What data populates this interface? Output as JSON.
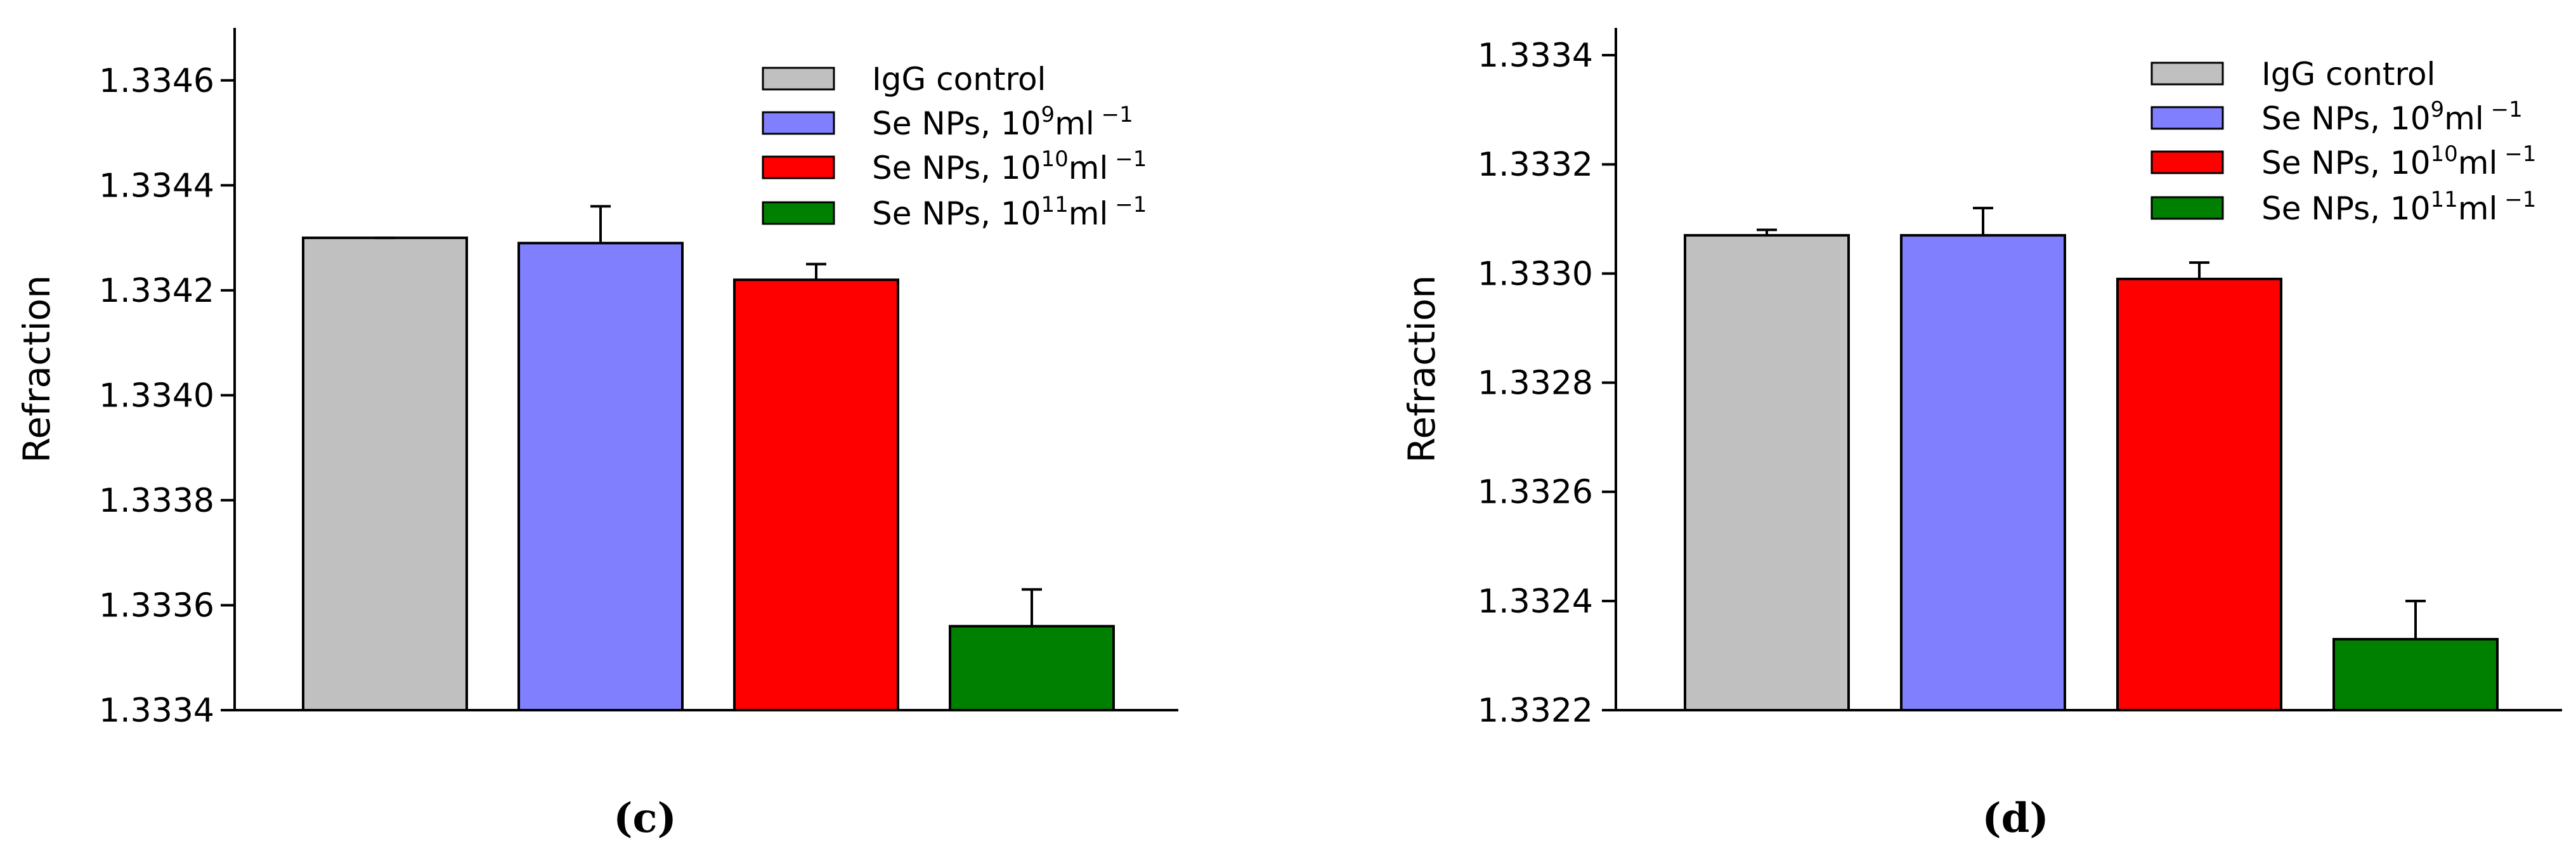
{
  "chart_data": [
    {
      "type": "bar",
      "panel_label": "(c)",
      "ylabel": "Refraction",
      "ylim": [
        1.3334,
        1.3347
      ],
      "yticks": [
        "1.3334",
        "1.3336",
        "1.3338",
        "1.3340",
        "1.3342",
        "1.3344",
        "1.3346"
      ],
      "legend_position": "top-right",
      "series": [
        {
          "name": "IgG control",
          "value": 1.3343,
          "error": 0,
          "color": "#c0c0c0"
        },
        {
          "name": "Se NPs, 10",
          "sup1": "9",
          "mid": "ml",
          "sup2": " −1",
          "value": 1.33429,
          "error": 7e-05,
          "color": "#8080ff"
        },
        {
          "name": "Se NPs, 10",
          "sup1": "10",
          "mid": "ml",
          "sup2": " −1",
          "value": 1.33422,
          "error": 3e-05,
          "color": "#ff0000"
        },
        {
          "name": "Se NPs, 10",
          "sup1": "11",
          "mid": "ml",
          "sup2": " −1",
          "value": 1.33356,
          "error": 7e-05,
          "color": "#008000"
        }
      ]
    },
    {
      "type": "bar",
      "panel_label": "(d)",
      "ylabel": "Refraction",
      "ylim": [
        1.3322,
        1.33345
      ],
      "yticks": [
        "1.3322",
        "1.3324",
        "1.3326",
        "1.3328",
        "1.3330",
        "1.3332",
        "1.3334"
      ],
      "legend_position": "top-right",
      "series": [
        {
          "name": "IgG control",
          "value": 1.33307,
          "error": 1e-05,
          "color": "#c0c0c0"
        },
        {
          "name": "Se NPs, 10",
          "sup1": "9",
          "mid": "ml",
          "sup2": " −1",
          "value": 1.33307,
          "error": 5e-05,
          "color": "#8080ff"
        },
        {
          "name": "Se NPs, 10",
          "sup1": "10",
          "mid": "ml",
          "sup2": " −1",
          "value": 1.33299,
          "error": 3e-05,
          "color": "#ff0000"
        },
        {
          "name": "Se NPs, 10",
          "sup1": "11",
          "mid": "ml",
          "sup2": " −1",
          "value": 1.33233,
          "error": 7e-05,
          "color": "#008000"
        }
      ]
    }
  ]
}
